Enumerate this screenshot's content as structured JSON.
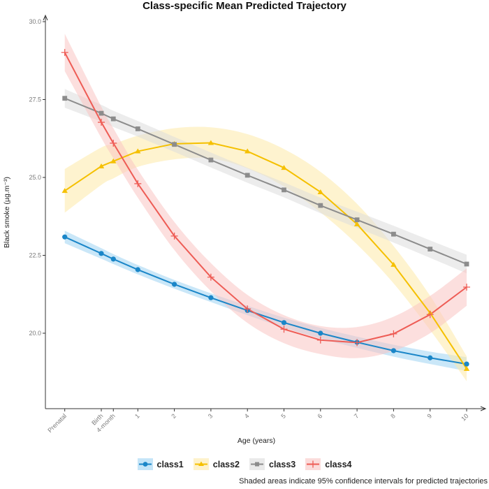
{
  "chart_data": {
    "type": "line",
    "title": "Class-specific Mean Predicted Trajectory",
    "xlabel": "Age (years)",
    "ylabel": "Black smoke (µg.m⁻³)",
    "x": [
      -1,
      0,
      0.33,
      1,
      2,
      3,
      4,
      5,
      6,
      7,
      8,
      9,
      10
    ],
    "x_tick_labels": [
      "Prenatal",
      "Birth",
      "4-month",
      "1",
      "2",
      "3",
      "4",
      "5",
      "6",
      "7",
      "8",
      "9",
      "10"
    ],
    "ylim": [
      17.5,
      30.5
    ],
    "xlim": [
      -1.55,
      11.0
    ],
    "y_ticks": [
      20.0,
      22.5,
      25.0,
      27.5,
      30.0
    ],
    "y_tick_labels": [
      "20.0",
      "22.5",
      "25.0",
      "27.5",
      "30.0"
    ],
    "grid": false,
    "legend_position": "bottom",
    "series": [
      {
        "name": "class1",
        "color": "#1a86c8",
        "band_color": "#9fd3f3",
        "marker": "circle",
        "values": [
          23.09,
          22.56,
          22.38,
          22.04,
          21.57,
          21.14,
          20.73,
          20.34,
          20.0,
          19.71,
          19.44,
          19.21,
          19.01
        ],
        "ci_halfwidth": [
          0.2,
          0.17,
          0.16,
          0.15,
          0.14,
          0.14,
          0.15,
          0.16,
          0.17,
          0.18,
          0.19,
          0.2,
          0.22
        ]
      },
      {
        "name": "class2",
        "color": "#f5c000",
        "band_color": "#fde9a8",
        "marker": "triangle",
        "values": [
          24.57,
          25.36,
          25.52,
          25.84,
          26.08,
          26.11,
          25.84,
          25.31,
          24.53,
          23.5,
          22.2,
          20.65,
          18.86
        ],
        "ci_halfwidth": [
          0.7,
          0.6,
          0.55,
          0.5,
          0.5,
          0.5,
          0.55,
          0.6,
          0.65,
          0.65,
          0.6,
          0.55,
          0.4
        ]
      },
      {
        "name": "class3",
        "color": "#8c8c8c",
        "band_color": "#dcdcdc",
        "marker": "square",
        "values": [
          27.54,
          27.06,
          26.88,
          26.56,
          26.06,
          25.56,
          25.07,
          24.6,
          24.1,
          23.64,
          23.18,
          22.7,
          22.22
        ],
        "ci_halfwidth": [
          0.3,
          0.27,
          0.26,
          0.25,
          0.24,
          0.24,
          0.24,
          0.24,
          0.25,
          0.26,
          0.27,
          0.28,
          0.3
        ]
      },
      {
        "name": "class4",
        "color": "#ee5c55",
        "band_color": "#f9c4c3",
        "marker": "cross",
        "values": [
          29.01,
          26.77,
          26.1,
          24.8,
          23.12,
          21.8,
          20.78,
          20.13,
          19.78,
          19.7,
          19.98,
          20.6,
          21.48
        ],
        "ci_halfwidth": [
          0.6,
          0.5,
          0.48,
          0.45,
          0.45,
          0.45,
          0.45,
          0.45,
          0.45,
          0.5,
          0.55,
          0.6,
          0.6
        ]
      }
    ],
    "caption": "Shaded areas indicate 95% confidence intervals for predicted trajectories"
  }
}
